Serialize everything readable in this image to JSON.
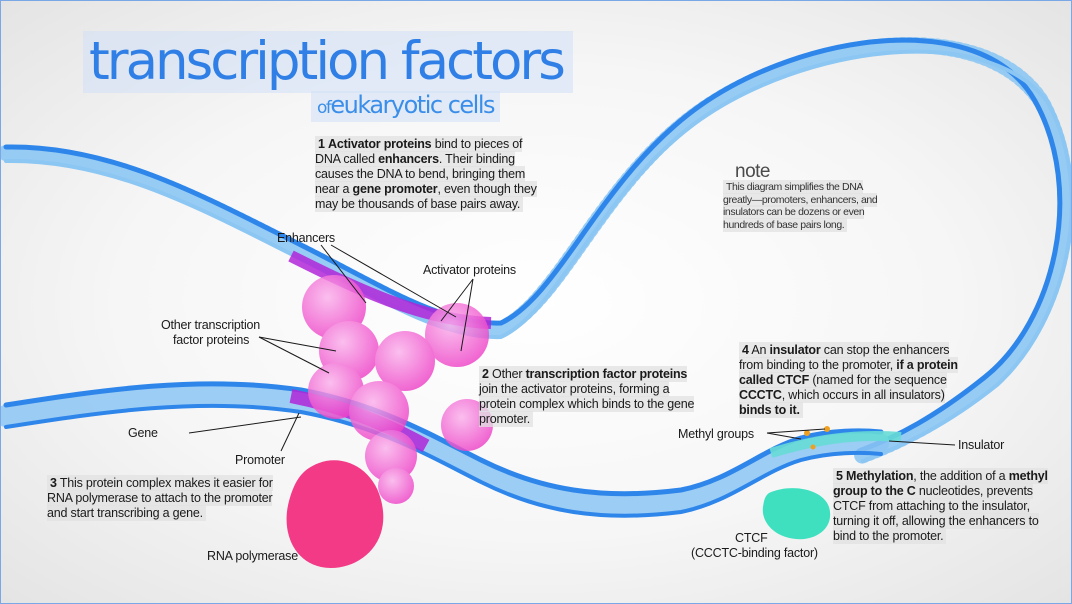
{
  "title": "transcription factors",
  "subtitle_prefix": "of",
  "subtitle_main": "eukaryotic cells",
  "note": {
    "heading": "note",
    "body": "This diagram simplifies the DNA greatly—promoters, enhancers, and insulators can be dozens or even hundreds of base pairs long."
  },
  "steps": {
    "s1": {
      "num": "1",
      "parts": [
        {
          "t": "Activator proteins",
          "b": true
        },
        {
          "t": " bind to pieces of DNA called ",
          "b": false
        },
        {
          "t": "enhancers",
          "b": true
        },
        {
          "t": ". Their binding causes the DNA to bend, bringing them near a ",
          "b": false
        },
        {
          "t": "gene promoter",
          "b": true
        },
        {
          "t": ", even though they may be thousands of base pairs away.",
          "b": false
        }
      ]
    },
    "s2": {
      "num": "2",
      "parts": [
        {
          "t": "Other ",
          "b": false
        },
        {
          "t": "transcription factor proteins",
          "b": true
        },
        {
          "t": " join the activator proteins, forming a protein complex which binds to the gene promoter.",
          "b": false
        }
      ]
    },
    "s3": {
      "num": "3",
      "parts": [
        {
          "t": "This protein complex makes it easier for RNA polymerase to attach to the promoter and start transcribing a gene.",
          "b": false
        }
      ]
    },
    "s4": {
      "num": "4",
      "parts": [
        {
          "t": "An ",
          "b": false
        },
        {
          "t": "insulator",
          "b": true
        },
        {
          "t": " can stop the enhancers from binding to the promoter, ",
          "b": false
        },
        {
          "t": "if a protein called CTCF",
          "b": true
        },
        {
          "t": " (named for the sequence ",
          "b": false
        },
        {
          "t": "CCCTC",
          "b": true
        },
        {
          "t": ", which occurs in all insulators) ",
          "b": false
        },
        {
          "t": "binds to it.",
          "b": true
        }
      ]
    },
    "s5": {
      "num": "5",
      "parts": [
        {
          "t": "Methylation",
          "b": true
        },
        {
          "t": ", the addition of a ",
          "b": false
        },
        {
          "t": "methyl group to the C",
          "b": true
        },
        {
          "t": " nucleotides, prevents CTCF from attaching to the insulator, turning it off, allowing the enhancers to bind to the promoter.",
          "b": false
        }
      ]
    }
  },
  "labels": {
    "enhancers": "Enhancers",
    "activator_proteins": "Activator proteins",
    "other_tf_line1": "Other transcription",
    "other_tf_line2": "factor proteins",
    "gene": "Gene",
    "promoter": "Promoter",
    "rna_polymerase": "RNA polymerase",
    "methyl_groups": "Methyl groups",
    "insulator": "Insulator",
    "ctcf": "CTCF",
    "ctcf_full": "(CCCTC-binding factor)"
  },
  "colors": {
    "dna_blue": "#2f86ea",
    "dna_light": "#8cc6f3",
    "enhancer_purple": "#b026d8",
    "protein_pink": "#f03fc6",
    "rna_polymerase": "#f23a86",
    "ctcf_teal": "#3fe0c0",
    "insulator_teal": "#67dcd6",
    "title_blue": "#2f7fe6"
  }
}
